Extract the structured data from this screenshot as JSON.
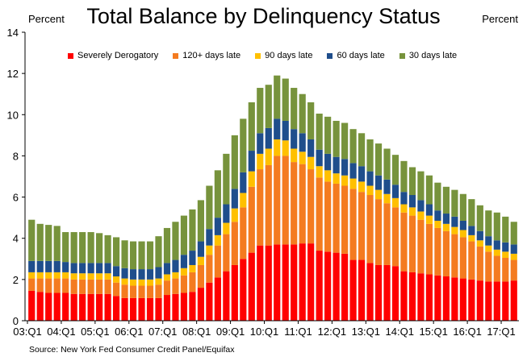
{
  "chart_data": {
    "type": "bar",
    "stacked": true,
    "title": "Total Balance by Delinquency Status",
    "ylabel_left": "Percent",
    "ylabel_right": "Percent",
    "ylim": [
      0,
      14
    ],
    "yticks": [
      "0",
      "2",
      "4",
      "6",
      "8",
      "10",
      "12",
      "14"
    ],
    "xtick_labels": [
      "03:Q1",
      "04:Q1",
      "05:Q1",
      "06:Q1",
      "07:Q1",
      "08:Q1",
      "09:Q1",
      "10:Q1",
      "11:Q1",
      "12:Q1",
      "13:Q1",
      "14:Q1",
      "15:Q1",
      "16:Q1",
      "17:Q1"
    ],
    "source": "Source: New York Fed Consumer Credit Panel/Equifax",
    "legend_position": "top",
    "categories": [
      "03:Q1",
      "03:Q2",
      "03:Q3",
      "03:Q4",
      "04:Q1",
      "04:Q2",
      "04:Q3",
      "04:Q4",
      "05:Q1",
      "05:Q2",
      "05:Q3",
      "05:Q4",
      "06:Q1",
      "06:Q2",
      "06:Q3",
      "06:Q4",
      "07:Q1",
      "07:Q2",
      "07:Q3",
      "07:Q4",
      "08:Q1",
      "08:Q2",
      "08:Q3",
      "08:Q4",
      "09:Q1",
      "09:Q2",
      "09:Q3",
      "09:Q4",
      "10:Q1",
      "10:Q2",
      "10:Q3",
      "10:Q4",
      "11:Q1",
      "11:Q2",
      "11:Q3",
      "11:Q4",
      "12:Q1",
      "12:Q2",
      "12:Q3",
      "12:Q4",
      "13:Q1",
      "13:Q2",
      "13:Q3",
      "13:Q4",
      "14:Q1",
      "14:Q2",
      "14:Q3",
      "14:Q4",
      "15:Q1",
      "15:Q2",
      "15:Q3",
      "15:Q4",
      "16:Q1",
      "16:Q2",
      "16:Q3",
      "16:Q4",
      "17:Q1",
      "17:Q2"
    ],
    "series": [
      {
        "name": "Severely Derogatory",
        "color": "#ff0000",
        "values": [
          1.45,
          1.4,
          1.35,
          1.35,
          1.35,
          1.3,
          1.3,
          1.3,
          1.3,
          1.3,
          1.2,
          1.1,
          1.1,
          1.1,
          1.1,
          1.1,
          1.25,
          1.3,
          1.35,
          1.4,
          1.6,
          1.85,
          2.1,
          2.4,
          2.7,
          3.0,
          3.3,
          3.65,
          3.65,
          3.7,
          3.7,
          3.7,
          3.75,
          3.75,
          3.4,
          3.35,
          3.3,
          3.25,
          2.95,
          2.95,
          2.8,
          2.7,
          2.7,
          2.65,
          2.4,
          2.35,
          2.3,
          2.25,
          2.2,
          2.15,
          2.1,
          2.05,
          2.0,
          1.95,
          1.9,
          1.9,
          1.9,
          1.95
        ]
      },
      {
        "name": "120+ days late",
        "color": "#f47b20",
        "values": [
          0.6,
          0.65,
          0.7,
          0.7,
          0.7,
          0.7,
          0.7,
          0.7,
          0.7,
          0.7,
          0.65,
          0.65,
          0.6,
          0.6,
          0.6,
          0.65,
          0.7,
          0.75,
          0.85,
          0.95,
          1.1,
          1.35,
          1.55,
          1.8,
          2.1,
          2.5,
          3.2,
          3.7,
          3.9,
          4.3,
          4.3,
          4.0,
          3.85,
          3.6,
          3.55,
          3.4,
          3.35,
          3.3,
          3.45,
          3.3,
          3.3,
          3.2,
          3.0,
          2.85,
          2.85,
          2.75,
          2.6,
          2.45,
          2.3,
          2.2,
          2.1,
          2.0,
          1.85,
          1.65,
          1.45,
          1.25,
          1.15,
          1.0
        ]
      },
      {
        "name": "90 days late",
        "color": "#ffc000",
        "values": [
          0.3,
          0.3,
          0.3,
          0.3,
          0.3,
          0.3,
          0.3,
          0.3,
          0.3,
          0.3,
          0.3,
          0.3,
          0.3,
          0.3,
          0.3,
          0.3,
          0.3,
          0.3,
          0.35,
          0.35,
          0.4,
          0.45,
          0.5,
          0.55,
          0.65,
          0.7,
          0.75,
          0.75,
          0.8,
          0.8,
          0.75,
          0.65,
          0.6,
          0.6,
          0.55,
          0.55,
          0.5,
          0.5,
          0.5,
          0.5,
          0.45,
          0.45,
          0.45,
          0.45,
          0.4,
          0.4,
          0.4,
          0.4,
          0.35,
          0.35,
          0.35,
          0.35,
          0.3,
          0.3,
          0.3,
          0.3,
          0.3,
          0.3
        ]
      },
      {
        "name": "60 days late",
        "color": "#1f4e8c",
        "values": [
          0.55,
          0.55,
          0.55,
          0.55,
          0.5,
          0.5,
          0.5,
          0.5,
          0.5,
          0.5,
          0.5,
          0.5,
          0.5,
          0.5,
          0.5,
          0.55,
          0.55,
          0.6,
          0.65,
          0.7,
          0.75,
          0.8,
          0.85,
          0.9,
          0.95,
          1.0,
          1.0,
          1.0,
          1.0,
          1.0,
          0.95,
          0.95,
          0.9,
          0.85,
          0.8,
          0.8,
          0.8,
          0.8,
          0.75,
          0.75,
          0.7,
          0.7,
          0.7,
          0.65,
          0.6,
          0.6,
          0.55,
          0.55,
          0.5,
          0.5,
          0.5,
          0.45,
          0.45,
          0.45,
          0.45,
          0.45,
          0.45,
          0.45
        ]
      },
      {
        "name": "30 days late",
        "color": "#77933c",
        "values": [
          2.0,
          1.8,
          1.75,
          1.7,
          1.45,
          1.5,
          1.5,
          1.5,
          1.45,
          1.35,
          1.4,
          1.35,
          1.35,
          1.35,
          1.35,
          1.5,
          1.7,
          1.85,
          1.9,
          2.0,
          2.0,
          2.1,
          2.3,
          2.45,
          2.6,
          2.6,
          2.35,
          2.2,
          2.1,
          2.1,
          2.05,
          2.0,
          1.9,
          1.8,
          1.75,
          1.8,
          1.75,
          1.75,
          1.65,
          1.6,
          1.55,
          1.55,
          1.5,
          1.45,
          1.5,
          1.35,
          1.4,
          1.4,
          1.35,
          1.3,
          1.3,
          1.3,
          1.3,
          1.25,
          1.25,
          1.35,
          1.25,
          1.1
        ]
      }
    ]
  }
}
